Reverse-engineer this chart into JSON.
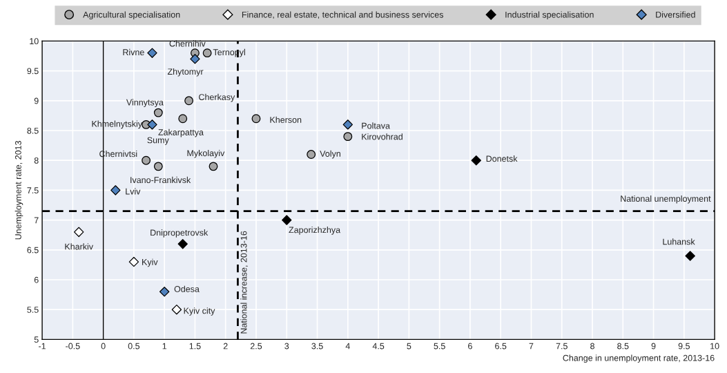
{
  "chart_data": {
    "type": "scatter",
    "xlabel": "Change in unemployment rate, 2013-16",
    "ylabel": "Unemployment rate, 2013",
    "xlim": [
      -1,
      10
    ],
    "xticks": [
      -1,
      -0.5,
      0,
      0.5,
      1,
      1.5,
      2,
      2.5,
      3,
      3.5,
      4,
      4.5,
      5,
      5.5,
      6,
      6.5,
      7,
      7.5,
      8,
      8.5,
      9,
      9.5,
      10
    ],
    "ylim": [
      5,
      10
    ],
    "yticks": [
      5,
      5.5,
      6,
      6.5,
      7,
      7.5,
      8,
      8.5,
      9,
      9.5,
      10
    ],
    "grid": true,
    "legend": "top",
    "series": [
      {
        "name": "Agricultural specialisation",
        "color": "#a6a6a6",
        "marker": "circle",
        "x": [
          1.5,
          1.7,
          0.9,
          1.4,
          1.3,
          0.7,
          2.5,
          4.0,
          3.4,
          0.7,
          0.9,
          1.8
        ],
        "values": [
          9.8,
          9.8,
          8.8,
          9.0,
          8.7,
          8.6,
          8.7,
          8.4,
          8.1,
          8.0,
          7.9,
          7.9
        ]
      },
      {
        "name": "Finance, real estate, technical and business services",
        "color": "#ffffff",
        "marker": "diamond",
        "x": [
          -0.4,
          0.5,
          1.2
        ],
        "values": [
          6.8,
          6.3,
          5.5
        ]
      },
      {
        "name": "Industrial specialisation",
        "color": "#000000",
        "marker": "diamond",
        "x": [
          6.1,
          3.0,
          1.3,
          9.6
        ],
        "values": [
          8.0,
          7.0,
          6.6,
          6.4
        ]
      },
      {
        "name": "Diversified",
        "color": "#4f81bd",
        "marker": "diamond",
        "x": [
          0.8,
          1.5,
          0.8,
          4.0,
          0.2,
          1.0
        ],
        "values": [
          9.8,
          9.7,
          8.6,
          8.6,
          7.5,
          5.8
        ]
      }
    ],
    "ref_lines": [
      {
        "axis": "x",
        "value": 0,
        "line_style": "solid",
        "color": "#000000"
      },
      {
        "axis": "x",
        "value": 2.2,
        "label": "National increase, 2013-16",
        "line_style": "dashed",
        "color": "#000000"
      },
      {
        "axis": "y",
        "value": 7.15,
        "label": "National unemployment",
        "line_style": "dashed",
        "color": "#000000"
      }
    ],
    "annotations": [
      {
        "text": "Chernihiv",
        "x": 1.5,
        "y": 9.8
      },
      {
        "text": "Ternopyl",
        "x": 1.7,
        "y": 9.8
      },
      {
        "text": "Rivne",
        "x": 0.8,
        "y": 9.8
      },
      {
        "text": "Zhytomyr",
        "x": 1.5,
        "y": 9.7
      },
      {
        "text": "Vinnytsya",
        "x": 0.9,
        "y": 8.8
      },
      {
        "text": "Cherkasy",
        "x": 1.4,
        "y": 9.0
      },
      {
        "text": "Zakarpattya",
        "x": 1.3,
        "y": 8.7
      },
      {
        "text": "Khmelnytskiy",
        "x": 0.7,
        "y": 8.6
      },
      {
        "text": "Sumy",
        "x": 0.8,
        "y": 8.6
      },
      {
        "text": "Kherson",
        "x": 2.5,
        "y": 8.7
      },
      {
        "text": "Poltava",
        "x": 4.0,
        "y": 8.6
      },
      {
        "text": "Kirovohrad",
        "x": 4.0,
        "y": 8.4
      },
      {
        "text": "Volyn",
        "x": 3.4,
        "y": 8.1
      },
      {
        "text": "Donetsk",
        "x": 6.1,
        "y": 8.0
      },
      {
        "text": "Chernivtsi",
        "x": 0.7,
        "y": 8.0
      },
      {
        "text": "Ivano-Frankivsk",
        "x": 0.9,
        "y": 7.9
      },
      {
        "text": "Mykolayiv",
        "x": 1.8,
        "y": 7.9
      },
      {
        "text": "Lviv",
        "x": 0.2,
        "y": 7.5
      },
      {
        "text": "Kharkiv",
        "x": -0.4,
        "y": 6.8
      },
      {
        "text": "Zaporizhzhya",
        "x": 3.0,
        "y": 7.0
      },
      {
        "text": "Dnipropetrovsk",
        "x": 1.3,
        "y": 6.6
      },
      {
        "text": "Luhansk",
        "x": 9.6,
        "y": 6.4
      },
      {
        "text": "Kyiv",
        "x": 0.5,
        "y": 6.3
      },
      {
        "text": "Odesa",
        "x": 1.0,
        "y": 5.8
      },
      {
        "text": "Kyiv city",
        "x": 1.2,
        "y": 5.5
      }
    ]
  }
}
